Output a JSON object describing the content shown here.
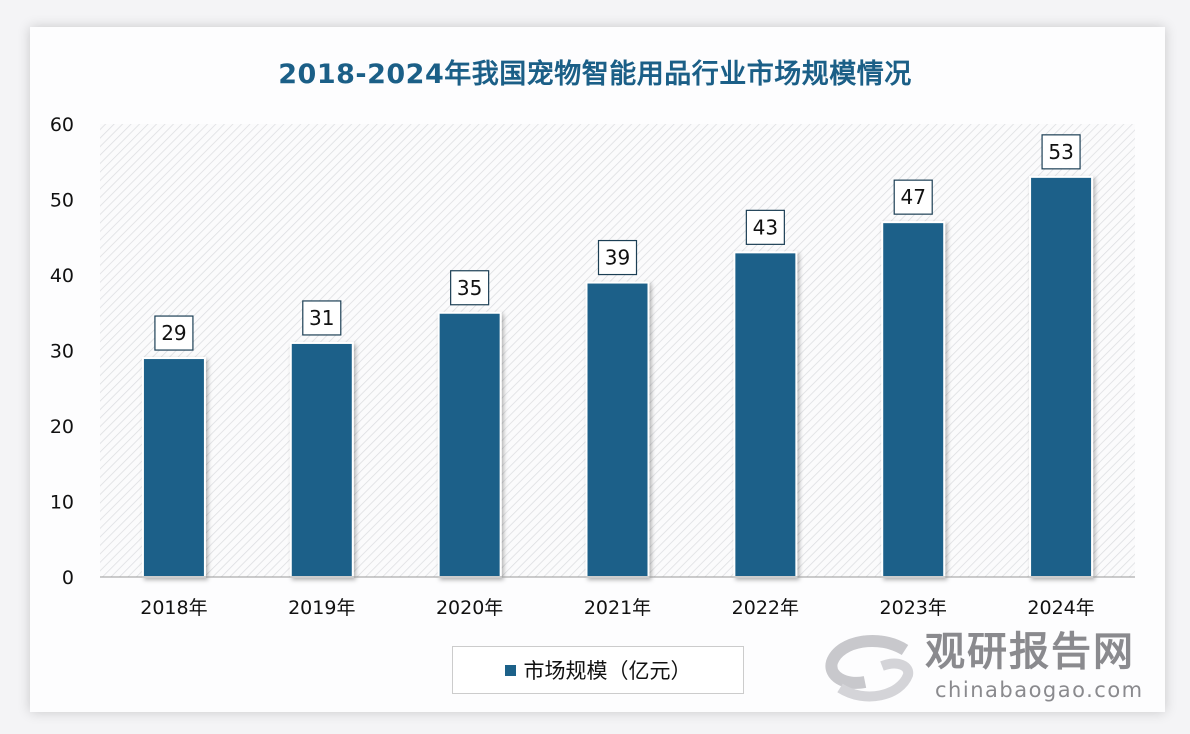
{
  "chart_data": {
    "type": "bar",
    "title": "2018-2024年我国宠物智能用品行业市场规模情况",
    "categories": [
      "2018年",
      "2019年",
      "2020年",
      "2021年",
      "2022年",
      "2023年",
      "2024年"
    ],
    "series": [
      {
        "name": "市场规模（亿元）",
        "values": [
          29,
          31,
          35,
          39,
          43,
          47,
          53
        ],
        "color": "#1c6189"
      }
    ],
    "xlabel": "",
    "ylabel": "",
    "ylim": [
      0,
      60
    ],
    "yticks": [
      0,
      10,
      20,
      30,
      40,
      50,
      60
    ],
    "grid": false,
    "legend": "bottom"
  },
  "watermark": {
    "name": "观研报告网",
    "url": "chinabaogao.com"
  }
}
